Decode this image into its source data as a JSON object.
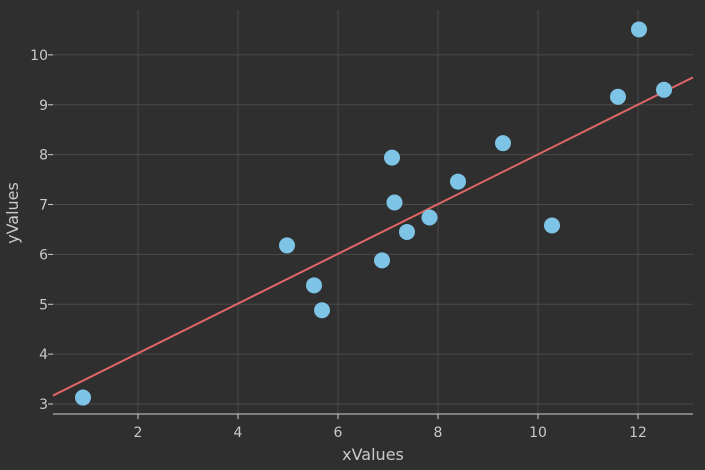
{
  "colors": {
    "background": "#2f2f2f",
    "grid": "#4a4a4a",
    "axis": "#cfcfcf",
    "text": "#c9c9c9",
    "points": "#7ec4e6",
    "fit_line": "#e06666"
  },
  "chart_data": {
    "type": "scatter",
    "title": "",
    "xlabel": "xValues",
    "ylabel": "yValues",
    "xlim": [
      0.3,
      13.1
    ],
    "ylim": [
      2.8,
      10.9
    ],
    "xticks": [
      2,
      4,
      6,
      8,
      10,
      12
    ],
    "yticks": [
      3,
      4,
      5,
      6,
      7,
      8,
      9,
      10
    ],
    "grid": true,
    "legend": "none",
    "series": [
      {
        "marker": "circle",
        "x": [
          0.9,
          4.98,
          5.52,
          5.68,
          6.88,
          7.08,
          7.13,
          7.38,
          7.83,
          8.4,
          9.3,
          10.28,
          11.6,
          12.02,
          12.52
        ],
        "y": [
          3.13,
          6.18,
          5.38,
          4.88,
          5.88,
          7.94,
          7.04,
          6.45,
          6.74,
          7.46,
          8.23,
          6.58,
          9.16,
          10.51,
          9.3
        ]
      }
    ],
    "fit_line": {
      "x": [
        0.3,
        13.1
      ],
      "y": [
        3.17,
        9.55
      ]
    }
  }
}
